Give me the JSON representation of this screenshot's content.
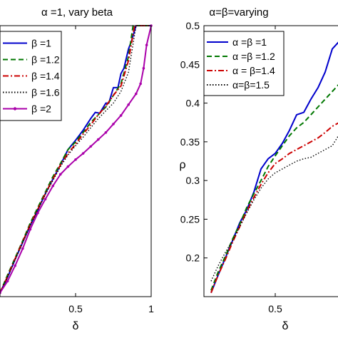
{
  "chart_data": [
    {
      "type": "line",
      "title": "α =1, vary beta",
      "xlabel": "δ",
      "ylabel": "",
      "xlim": [
        0,
        1
      ],
      "ylim": [
        0.15,
        0.5
      ],
      "xticks": [
        "0.5",
        "1"
      ],
      "yticks": [],
      "grid": false,
      "legend_position": "top-left",
      "series": [
        {
          "name": "β =1",
          "color": "#0000cc",
          "dash": "solid",
          "marker": "none",
          "x": [
            0.0,
            0.05,
            0.1,
            0.15,
            0.2,
            0.25,
            0.3,
            0.35,
            0.4,
            0.45,
            0.5,
            0.55,
            0.6,
            0.63,
            0.66,
            0.7,
            0.72,
            0.75,
            0.78,
            0.8,
            0.82,
            0.85,
            0.87,
            0.9,
            1.0
          ],
          "y": [
            0.155,
            0.175,
            0.198,
            0.22,
            0.242,
            0.262,
            0.283,
            0.302,
            0.32,
            0.34,
            0.352,
            0.365,
            0.38,
            0.388,
            0.387,
            0.4,
            0.4,
            0.42,
            0.42,
            0.438,
            0.445,
            0.47,
            0.48,
            0.5,
            0.5
          ]
        },
        {
          "name": "β =1.2",
          "color": "#007700",
          "dash": "dash",
          "marker": "none",
          "x": [
            0.0,
            0.05,
            0.1,
            0.15,
            0.2,
            0.25,
            0.3,
            0.35,
            0.4,
            0.45,
            0.5,
            0.55,
            0.6,
            0.65,
            0.7,
            0.75,
            0.8,
            0.85,
            0.88,
            1.0
          ],
          "y": [
            0.155,
            0.178,
            0.2,
            0.222,
            0.245,
            0.265,
            0.285,
            0.305,
            0.322,
            0.34,
            0.35,
            0.362,
            0.375,
            0.385,
            0.395,
            0.41,
            0.425,
            0.46,
            0.5,
            0.5
          ]
        },
        {
          "name": "β =1.4",
          "color": "#cc0000",
          "dash": "dashdot",
          "marker": "none",
          "x": [
            0.0,
            0.05,
            0.1,
            0.15,
            0.2,
            0.25,
            0.3,
            0.35,
            0.4,
            0.45,
            0.5,
            0.55,
            0.6,
            0.65,
            0.7,
            0.75,
            0.8,
            0.85,
            0.89,
            1.0
          ],
          "y": [
            0.155,
            0.176,
            0.199,
            0.221,
            0.243,
            0.263,
            0.283,
            0.302,
            0.32,
            0.335,
            0.347,
            0.36,
            0.372,
            0.385,
            0.396,
            0.41,
            0.422,
            0.455,
            0.5,
            0.5
          ]
        },
        {
          "name": "β =1.6",
          "color": "#000000",
          "dash": "dot",
          "marker": "none",
          "x": [
            0.0,
            0.05,
            0.1,
            0.15,
            0.2,
            0.25,
            0.3,
            0.35,
            0.4,
            0.45,
            0.5,
            0.55,
            0.6,
            0.65,
            0.7,
            0.75,
            0.8,
            0.85,
            0.9,
            1.0
          ],
          "y": [
            0.155,
            0.176,
            0.198,
            0.22,
            0.242,
            0.262,
            0.282,
            0.3,
            0.318,
            0.333,
            0.345,
            0.356,
            0.368,
            0.38,
            0.39,
            0.4,
            0.415,
            0.44,
            0.5,
            0.5
          ]
        },
        {
          "name": "β =2",
          "color": "#aa00aa",
          "dash": "solid",
          "marker": "dot",
          "x": [
            0.0,
            0.05,
            0.1,
            0.15,
            0.2,
            0.25,
            0.3,
            0.35,
            0.4,
            0.45,
            0.5,
            0.55,
            0.6,
            0.65,
            0.7,
            0.75,
            0.8,
            0.85,
            0.9,
            0.93,
            0.95,
            0.97,
            1.0
          ],
          "y": [
            0.155,
            0.17,
            0.19,
            0.212,
            0.237,
            0.258,
            0.276,
            0.293,
            0.308,
            0.318,
            0.327,
            0.335,
            0.344,
            0.353,
            0.362,
            0.373,
            0.384,
            0.398,
            0.412,
            0.425,
            0.445,
            0.475,
            0.5
          ]
        }
      ]
    },
    {
      "type": "line",
      "title": "α=β=varying",
      "xlabel": "δ",
      "ylabel": "ρ",
      "xlim": [
        0,
        1
      ],
      "ylim": [
        0.15,
        0.5
      ],
      "xticks": [
        "0.5"
      ],
      "yticks": [
        "0.2",
        "0.25",
        "0.3",
        "0.35",
        "0.4",
        "0.45",
        "0.5"
      ],
      "grid": false,
      "legend_position": "top-left",
      "series": [
        {
          "name": "α =β =1",
          "color": "#0000cc",
          "dash": "solid",
          "marker": "none",
          "x": [
            0.05,
            0.1,
            0.15,
            0.2,
            0.25,
            0.3,
            0.35,
            0.4,
            0.45,
            0.5,
            0.55,
            0.6,
            0.65,
            0.7,
            0.75,
            0.8,
            0.85,
            0.9,
            0.95,
            1.0
          ],
          "y": [
            0.155,
            0.178,
            0.2,
            0.222,
            0.245,
            0.262,
            0.285,
            0.315,
            0.328,
            0.335,
            0.348,
            0.365,
            0.385,
            0.388,
            0.405,
            0.42,
            0.44,
            0.47,
            0.48,
            0.49
          ]
        },
        {
          "name": "α =β =1.2",
          "color": "#007700",
          "dash": "dash",
          "marker": "none",
          "x": [
            0.05,
            0.1,
            0.15,
            0.2,
            0.25,
            0.3,
            0.35,
            0.4,
            0.45,
            0.5,
            0.55,
            0.6,
            0.65,
            0.7,
            0.75,
            0.8,
            0.85,
            0.9,
            0.95,
            1.0
          ],
          "y": [
            0.158,
            0.182,
            0.202,
            0.224,
            0.243,
            0.265,
            0.283,
            0.3,
            0.318,
            0.332,
            0.345,
            0.358,
            0.368,
            0.375,
            0.385,
            0.395,
            0.405,
            0.415,
            0.425,
            0.43
          ]
        },
        {
          "name": "α = β=1.4",
          "color": "#cc0000",
          "dash": "dashdot",
          "marker": "none",
          "x": [
            0.05,
            0.1,
            0.15,
            0.2,
            0.25,
            0.3,
            0.35,
            0.4,
            0.45,
            0.5,
            0.55,
            0.6,
            0.65,
            0.7,
            0.75,
            0.8,
            0.85,
            0.9,
            0.95,
            1.0
          ],
          "y": [
            0.155,
            0.178,
            0.198,
            0.22,
            0.24,
            0.26,
            0.278,
            0.295,
            0.31,
            0.322,
            0.328,
            0.335,
            0.34,
            0.345,
            0.35,
            0.355,
            0.362,
            0.37,
            0.375,
            0.38
          ]
        },
        {
          "name": "α=β=1.5",
          "color": "#000000",
          "dash": "dot",
          "marker": "none",
          "x": [
            0.05,
            0.1,
            0.15,
            0.2,
            0.25,
            0.3,
            0.35,
            0.4,
            0.45,
            0.5,
            0.55,
            0.6,
            0.65,
            0.7,
            0.75,
            0.8,
            0.85,
            0.9,
            0.95,
            1.0
          ],
          "y": [
            0.17,
            0.19,
            0.207,
            0.222,
            0.24,
            0.258,
            0.275,
            0.29,
            0.302,
            0.31,
            0.315,
            0.32,
            0.325,
            0.328,
            0.33,
            0.335,
            0.34,
            0.345,
            0.36,
            0.37
          ]
        }
      ]
    }
  ]
}
